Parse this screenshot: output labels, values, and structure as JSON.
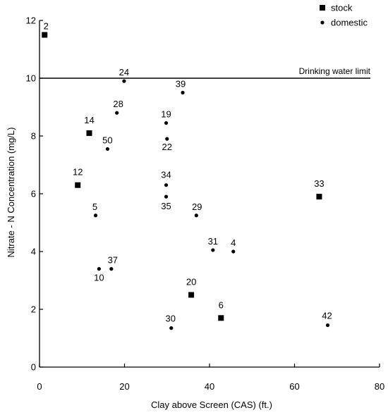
{
  "chart_data": {
    "type": "scatter",
    "xlabel": "Clay above Screen (CAS) (ft.)",
    "ylabel": "Nitrate - N Concentration (mg/L)",
    "xlim": [
      0,
      80
    ],
    "ylim": [
      0,
      12
    ],
    "xticks": [
      0,
      20,
      40,
      60,
      80
    ],
    "yticks": [
      0,
      2,
      4,
      6,
      8,
      10,
      12
    ],
    "grid": false,
    "legend_position": "top-right",
    "reference_line": {
      "y": 10,
      "label": "Drinking water limit"
    },
    "series": [
      {
        "name": "stock",
        "marker": "square",
        "points": [
          {
            "label": "2",
            "x": 1.2,
            "y": 11.5
          },
          {
            "label": "14",
            "x": 11.7,
            "y": 8.1
          },
          {
            "label": "12",
            "x": 9.0,
            "y": 6.3
          },
          {
            "label": "33",
            "x": 65.8,
            "y": 5.9
          },
          {
            "label": "20",
            "x": 35.7,
            "y": 2.5
          },
          {
            "label": "6",
            "x": 42.7,
            "y": 1.7
          }
        ]
      },
      {
        "name": "domestic",
        "marker": "circle",
        "points": [
          {
            "label": "24",
            "x": 19.9,
            "y": 9.9
          },
          {
            "label": "39",
            "x": 33.7,
            "y": 9.5
          },
          {
            "label": "28",
            "x": 18.2,
            "y": 8.8
          },
          {
            "label": "19",
            "x": 29.8,
            "y": 8.45
          },
          {
            "label": "22",
            "x": 30.0,
            "y": 7.9
          },
          {
            "label": "50",
            "x": 16.0,
            "y": 7.55
          },
          {
            "label": "34",
            "x": 29.8,
            "y": 6.3
          },
          {
            "label": "35",
            "x": 29.8,
            "y": 5.9
          },
          {
            "label": "5",
            "x": 13.2,
            "y": 5.25
          },
          {
            "label": "29",
            "x": 36.9,
            "y": 5.25
          },
          {
            "label": "31",
            "x": 40.8,
            "y": 4.05
          },
          {
            "label": "4",
            "x": 45.6,
            "y": 4.0
          },
          {
            "label": "37",
            "x": 16.9,
            "y": 3.4
          },
          {
            "label": "10",
            "x": 14.0,
            "y": 3.4
          },
          {
            "label": "30",
            "x": 31.0,
            "y": 1.35
          },
          {
            "label": "42",
            "x": 67.8,
            "y": 1.45
          }
        ]
      }
    ]
  }
}
